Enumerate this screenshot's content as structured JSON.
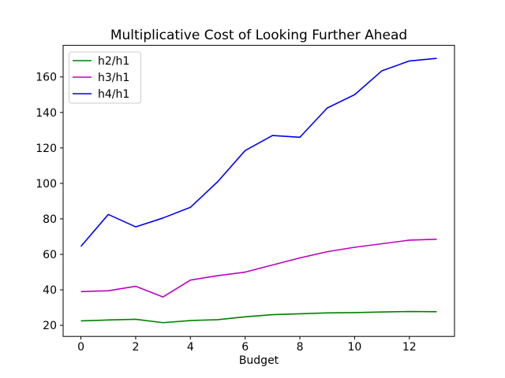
{
  "chart_data": {
    "type": "line",
    "title": "Multiplicative Cost of Looking Further Ahead",
    "xlabel": "Budget",
    "ylabel": "",
    "grid": false,
    "background": "#ffffff",
    "axis_color": "#000000",
    "x": [
      0,
      1,
      2,
      3,
      4,
      5,
      6,
      7,
      8,
      9,
      10,
      11,
      12,
      13
    ],
    "series": [
      {
        "name": "h2/h1",
        "color": "#008000",
        "values": [
          22.5,
          23.0,
          23.4,
          21.5,
          22.7,
          23.2,
          24.8,
          26.0,
          26.5,
          27.0,
          27.2,
          27.5,
          27.8,
          27.7
        ]
      },
      {
        "name": "h3/h1",
        "color": "#bf00bf",
        "values": [
          39.0,
          39.5,
          42.0,
          36.0,
          45.5,
          48.0,
          50.0,
          54.0,
          58.0,
          61.5,
          64.0,
          66.0,
          68.0,
          68.5
        ]
      },
      {
        "name": "h4/h1",
        "color": "#0000ff",
        "values": [
          64.5,
          82.5,
          75.5,
          80.5,
          86.5,
          101.0,
          118.5,
          127.0,
          126.0,
          142.5,
          150.0,
          163.5,
          169.0,
          170.5
        ]
      }
    ],
    "xticks": [
      0,
      2,
      4,
      6,
      8,
      10,
      12
    ],
    "yticks": [
      20,
      40,
      60,
      80,
      100,
      120,
      140,
      160
    ],
    "xlim": [
      -0.65,
      13.65
    ],
    "ylim": [
      13.75,
      177.8
    ],
    "legend": {
      "position": "upper-left",
      "entries": [
        "h2/h1",
        "h3/h1",
        "h4/h1"
      ]
    }
  }
}
